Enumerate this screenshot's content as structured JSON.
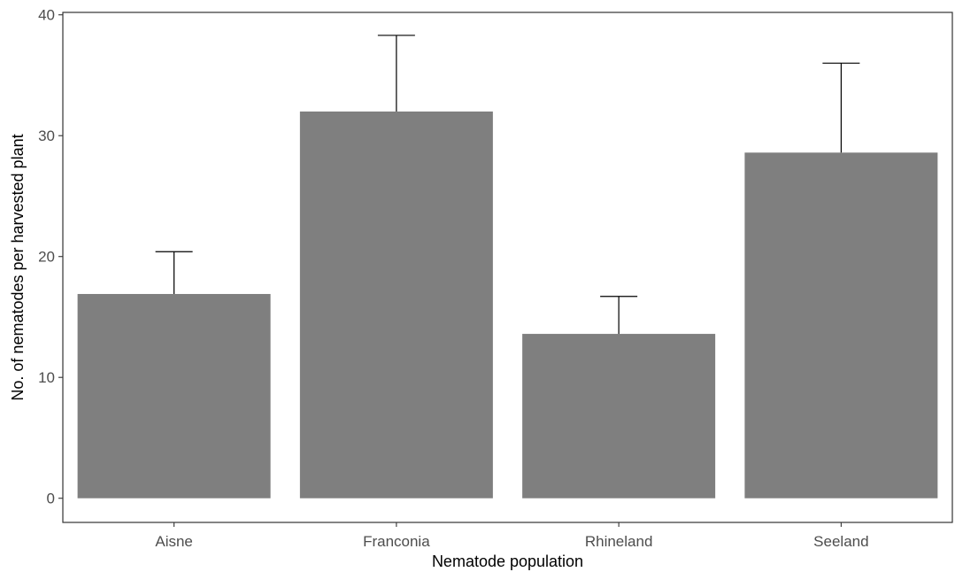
{
  "chart_data": {
    "type": "bar",
    "title": "",
    "xlabel": "Nematode population",
    "ylabel": "No. of nematodes per harvested plant",
    "categories": [
      "Aisne",
      "Franconia",
      "Rhineland",
      "Seeland"
    ],
    "values": [
      16.9,
      32.0,
      13.6,
      28.6
    ],
    "error_upper": [
      20.4,
      38.3,
      16.7,
      36.0
    ],
    "ylim": [
      -2,
      40.2
    ],
    "yticks": [
      0,
      10,
      20,
      30,
      40
    ],
    "ytick_labels": [
      "0",
      "10",
      "20",
      "30",
      "40"
    ],
    "grid": false,
    "legend": "none",
    "colors": {
      "bar": "#7f7f7f",
      "errorbar": "#000000",
      "axis": "#333333",
      "tick_label": "#4d4d4d"
    }
  }
}
